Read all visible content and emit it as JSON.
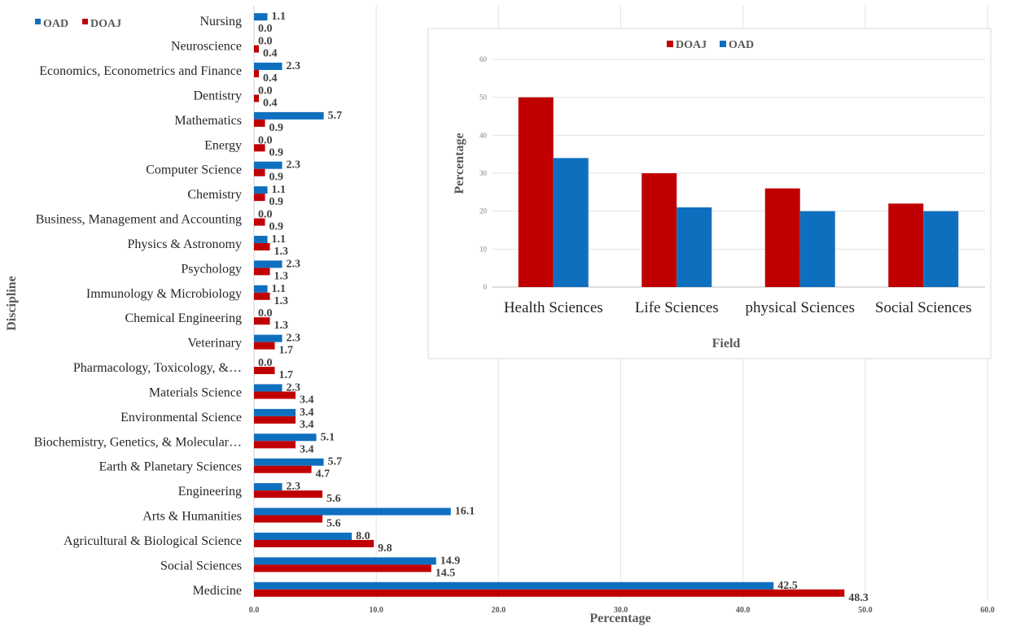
{
  "chart_data": [
    {
      "type": "bar",
      "orientation": "horizontal",
      "xlabel": "Percentage",
      "ylabel": "Discipline",
      "xlim": [
        0,
        60
      ],
      "xticks": [
        "0.0",
        "10.0",
        "20.0",
        "30.0",
        "40.0",
        "50.0",
        "60.0"
      ],
      "legend_position": "top-left",
      "categories": [
        "Nursing",
        "Neuroscience",
        "Economics, Econometrics and Finance",
        "Dentistry",
        "Mathematics",
        "Energy",
        "Computer Science",
        "Chemistry",
        "Business, Management and Accounting",
        "Physics & Astronomy",
        "Psychology",
        "Immunology & Microbiology",
        "Chemical Engineering",
        "Veterinary",
        "Pharmacology, Toxicology, &…",
        "Materials Science",
        "Environmental Science",
        "Biochemistry, Genetics, & Molecular…",
        "Earth & Planetary Sciences",
        "Engineering",
        "Arts & Humanities",
        "Agricultural & Biological Science",
        "Social Sciences",
        "Medicine"
      ],
      "series": [
        {
          "name": "OAD",
          "color": "#0f6fbf",
          "values": [
            1.1,
            0.0,
            2.3,
            0.0,
            5.7,
            0.0,
            2.3,
            1.1,
            0.0,
            1.1,
            2.3,
            1.1,
            0.0,
            2.3,
            0.0,
            2.3,
            3.4,
            5.1,
            5.7,
            2.3,
            16.1,
            8.0,
            14.9,
            42.5
          ],
          "labels": [
            "1.1",
            "0.0",
            "2.3",
            "0.0",
            "5.7",
            "0.0",
            "2.3",
            "1.1",
            "0.0",
            "1.1",
            "2.3",
            "1.1",
            "0.0",
            "2.3",
            "0.0",
            "2.3",
            "3.4",
            "5.1",
            "5.7",
            "2.3",
            "16.1",
            "8.0",
            "14.9",
            "42.5"
          ]
        },
        {
          "name": "DOAJ",
          "color": "#c00000",
          "values": [
            0.0,
            0.4,
            0.4,
            0.4,
            0.9,
            0.9,
            0.9,
            0.9,
            0.9,
            1.3,
            1.3,
            1.3,
            1.3,
            1.7,
            1.7,
            3.4,
            3.4,
            3.4,
            4.7,
            5.6,
            5.6,
            9.8,
            14.5,
            48.3
          ],
          "labels": [
            "0.0",
            "0.4",
            "0.4",
            "0.4",
            "0.9",
            "0.9",
            "0.9",
            "0.9",
            "0.9",
            "1.3",
            "1.3",
            "1.3",
            "1.3",
            "1.7",
            "1.7",
            "3.4",
            "3.4",
            "3.4",
            "4.7",
            "5.6",
            "5.6",
            "9.8",
            "14.5",
            "48.3"
          ]
        }
      ]
    },
    {
      "type": "bar",
      "orientation": "vertical",
      "xlabel": "Field",
      "ylabel": "Percentage",
      "ylim": [
        0,
        60
      ],
      "yticks": [
        "0",
        "10",
        "20",
        "30",
        "40",
        "50",
        "60"
      ],
      "legend_position": "top-center",
      "categories": [
        "Health Sciences",
        "Life Sciences",
        "physical Sciences",
        "Social Sciences"
      ],
      "series": [
        {
          "name": "DOAJ",
          "color": "#c00000",
          "values": [
            50,
            30,
            26,
            22
          ]
        },
        {
          "name": "OAD",
          "color": "#0f6fbf",
          "values": [
            34,
            21,
            20,
            20
          ]
        }
      ]
    }
  ]
}
